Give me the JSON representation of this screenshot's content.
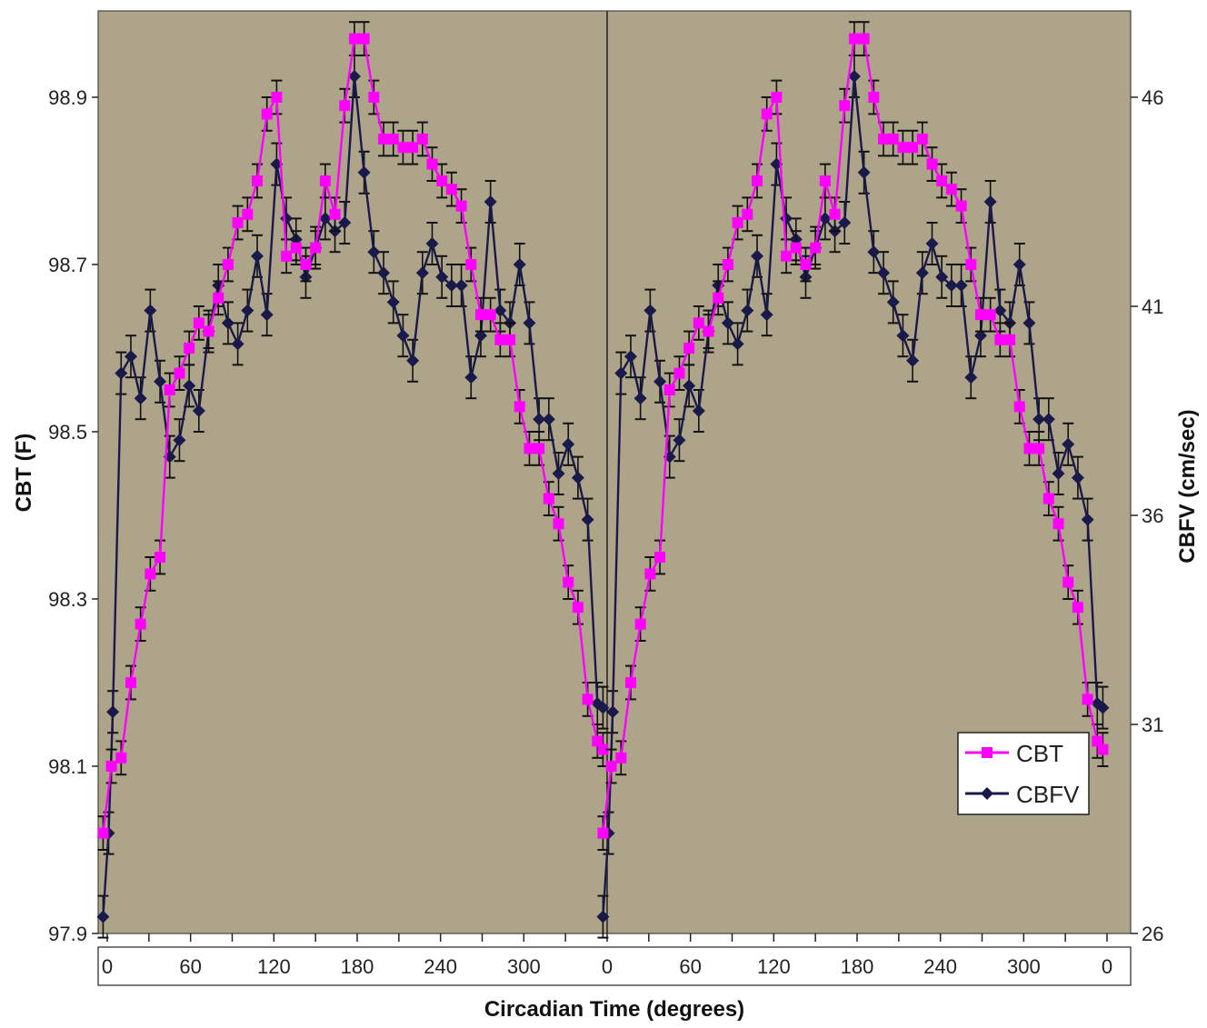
{
  "chart_data": {
    "type": "line",
    "title": "",
    "xlabel": "Circadian Time (degrees)",
    "ylabel_left": "CBT (F)",
    "ylabel_right": "CBFV (cm/sec)",
    "ylim_left": [
      97.9,
      99.0
    ],
    "ylim_right": [
      26,
      48
    ],
    "xlim": [
      0,
      720
    ],
    "x_tick_positions": [
      0,
      60,
      120,
      180,
      240,
      300,
      360,
      420,
      480,
      540,
      600,
      660,
      720
    ],
    "x_tick_labels": [
      "0",
      "60",
      "120",
      "180",
      "240",
      "300",
      "0",
      "60",
      "120",
      "180",
      "240",
      "300",
      "0"
    ],
    "y_left_ticks": [
      "97.9",
      "98.1",
      "98.3",
      "98.5",
      "98.7",
      "98.9"
    ],
    "y_left_tick_values": [
      97.9,
      98.1,
      98.3,
      98.5,
      98.7,
      98.9
    ],
    "y_right_ticks": [
      "26",
      "31",
      "36",
      "41",
      "46"
    ],
    "y_right_tick_values": [
      26,
      31,
      36,
      41,
      46
    ],
    "grid": false,
    "background_color": "#aea48a",
    "legend_position": "bottom-right",
    "series": [
      {
        "name": "CBT",
        "axis": "left",
        "color": "#ff00ff",
        "marker": "square",
        "error": 0.02,
        "x": [
          -3,
          3,
          10,
          17,
          24,
          31,
          38,
          45,
          52,
          59,
          66,
          73,
          80,
          87,
          94,
          101,
          108,
          115,
          122,
          129,
          136,
          143,
          150,
          157,
          164,
          171,
          178,
          185,
          192,
          199,
          206,
          213,
          220,
          227,
          234,
          241,
          248,
          255,
          262,
          269,
          276,
          283,
          290,
          297,
          304,
          311,
          318,
          325,
          332,
          339,
          346,
          353,
          357
        ],
        "y": [
          98.02,
          98.1,
          98.11,
          98.2,
          98.27,
          98.33,
          98.35,
          98.55,
          98.57,
          98.6,
          98.63,
          98.62,
          98.66,
          98.7,
          98.75,
          98.76,
          98.8,
          98.88,
          98.9,
          98.71,
          98.72,
          98.7,
          98.72,
          98.8,
          98.76,
          98.89,
          98.97,
          98.97,
          98.9,
          98.85,
          98.85,
          98.84,
          98.84,
          98.85,
          98.82,
          98.8,
          98.79,
          98.77,
          98.7,
          98.64,
          98.64,
          98.61,
          98.61,
          98.53,
          98.48,
          98.48,
          98.42,
          98.39,
          98.32,
          98.29,
          98.18,
          98.13,
          98.12
        ]
      },
      {
        "name": "CBFV",
        "axis": "right",
        "color": "#1a1a4a",
        "marker": "diamond",
        "error": 0.5,
        "x": [
          -3,
          1,
          4,
          10,
          17,
          24,
          31,
          38,
          45,
          52,
          59,
          66,
          73,
          80,
          87,
          94,
          101,
          108,
          115,
          122,
          129,
          136,
          143,
          150,
          157,
          164,
          171,
          178,
          185,
          192,
          199,
          206,
          213,
          220,
          227,
          234,
          241,
          248,
          255,
          262,
          269,
          276,
          283,
          290,
          297,
          304,
          311,
          318,
          325,
          332,
          339,
          346,
          353,
          357
        ],
        "y": [
          26.4,
          28.4,
          31.3,
          39.4,
          39.8,
          38.8,
          40.9,
          39.2,
          37.4,
          37.8,
          39.1,
          38.5,
          40.4,
          41.5,
          40.6,
          40.1,
          40.9,
          42.2,
          40.8,
          44.4,
          43.1,
          42.6,
          41.7,
          42.4,
          43.1,
          42.8,
          43,
          46.5,
          44.2,
          42.3,
          41.8,
          41.1,
          40.3,
          39.7,
          41.8,
          42.5,
          41.7,
          41.5,
          41.5,
          39.3,
          40.3,
          43.5,
          40.9,
          40.6,
          42,
          40.6,
          38.3,
          38.3,
          37,
          37.7,
          36.9,
          35.9,
          31.5,
          31.4
        ]
      }
    ],
    "legend": [
      "CBT",
      "CBFV"
    ]
  }
}
